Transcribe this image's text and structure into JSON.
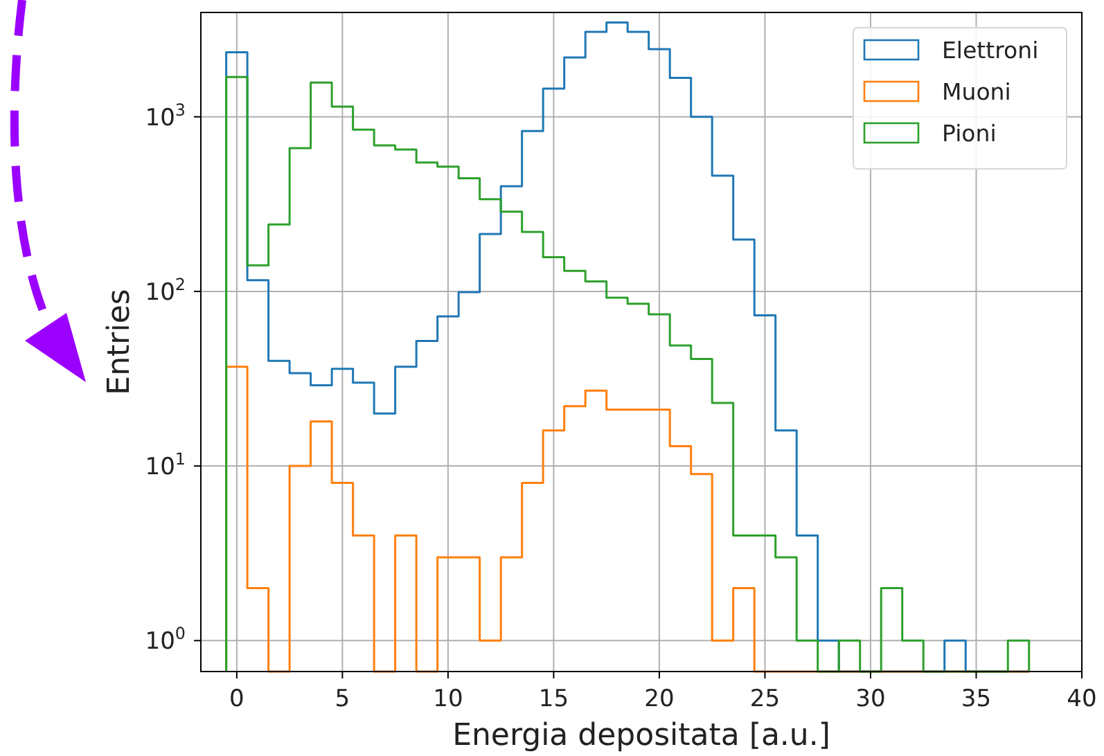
{
  "chart_data": {
    "type": "histogram",
    "xlabel": "Energia depositata [a.u.]",
    "ylabel": "Entries",
    "bins": [
      -0.5,
      0.5,
      1.5,
      2.5,
      3.5,
      4.5,
      5.5,
      6.5,
      7.5,
      8.5,
      9.5,
      10.5,
      11.5,
      12.5,
      13.5,
      14.5,
      15.5,
      16.5,
      17.5,
      18.5,
      19.5,
      20.5,
      21.5,
      22.5,
      23.5,
      24.5,
      25.5,
      26.5,
      27.5,
      28.5,
      29.5,
      30.5,
      31.5,
      32.5,
      33.5,
      34.5,
      35.5,
      36.5,
      37.5
    ],
    "series": [
      {
        "name": "Elettroni",
        "color": "#1f77b4",
        "values": [
          2340,
          116,
          40,
          34,
          29,
          36,
          30,
          20,
          37,
          52,
          72,
          99,
          213,
          400,
          830,
          1450,
          2190,
          3070,
          3470,
          3070,
          2440,
          1670,
          1000,
          460,
          198,
          73,
          16,
          4,
          1,
          null,
          null,
          null,
          null,
          null,
          1,
          null,
          null,
          null
        ]
      },
      {
        "name": "Muoni",
        "color": "#ff7f0e",
        "values": [
          37,
          2,
          null,
          10,
          18,
          8,
          4,
          null,
          4,
          null,
          3,
          3,
          1,
          3,
          8,
          16,
          22,
          27,
          21,
          21,
          21,
          13,
          9,
          1,
          2,
          null,
          null,
          null,
          null,
          null,
          null,
          null,
          null,
          null,
          null,
          null,
          null,
          null
        ]
      },
      {
        "name": "Pioni",
        "color": "#2ca02c",
        "values": [
          1690,
          141,
          242,
          662,
          1570,
          1145,
          844,
          686,
          650,
          547,
          518,
          445,
          337,
          286,
          219,
          157,
          131,
          114,
          92,
          85,
          74,
          49,
          41,
          23,
          4,
          4,
          3,
          1,
          null,
          1,
          null,
          2,
          1,
          null,
          null,
          null,
          null,
          1
        ]
      }
    ],
    "xlim": [
      -1.7,
      40
    ],
    "xticks": [
      0,
      5,
      10,
      15,
      20,
      25,
      30,
      35,
      40
    ],
    "ylim": [
      0.665,
      3960
    ],
    "yticks": [
      {
        "value": 1,
        "label": "10$^{0}$"
      },
      {
        "value": 10,
        "label": "10$^{1}$"
      },
      {
        "value": 100,
        "label": "10$^{2}$"
      },
      {
        "value": 1000,
        "label": "10$^{3}$"
      }
    ],
    "log": "y",
    "grid": true,
    "legend": "top right"
  }
}
